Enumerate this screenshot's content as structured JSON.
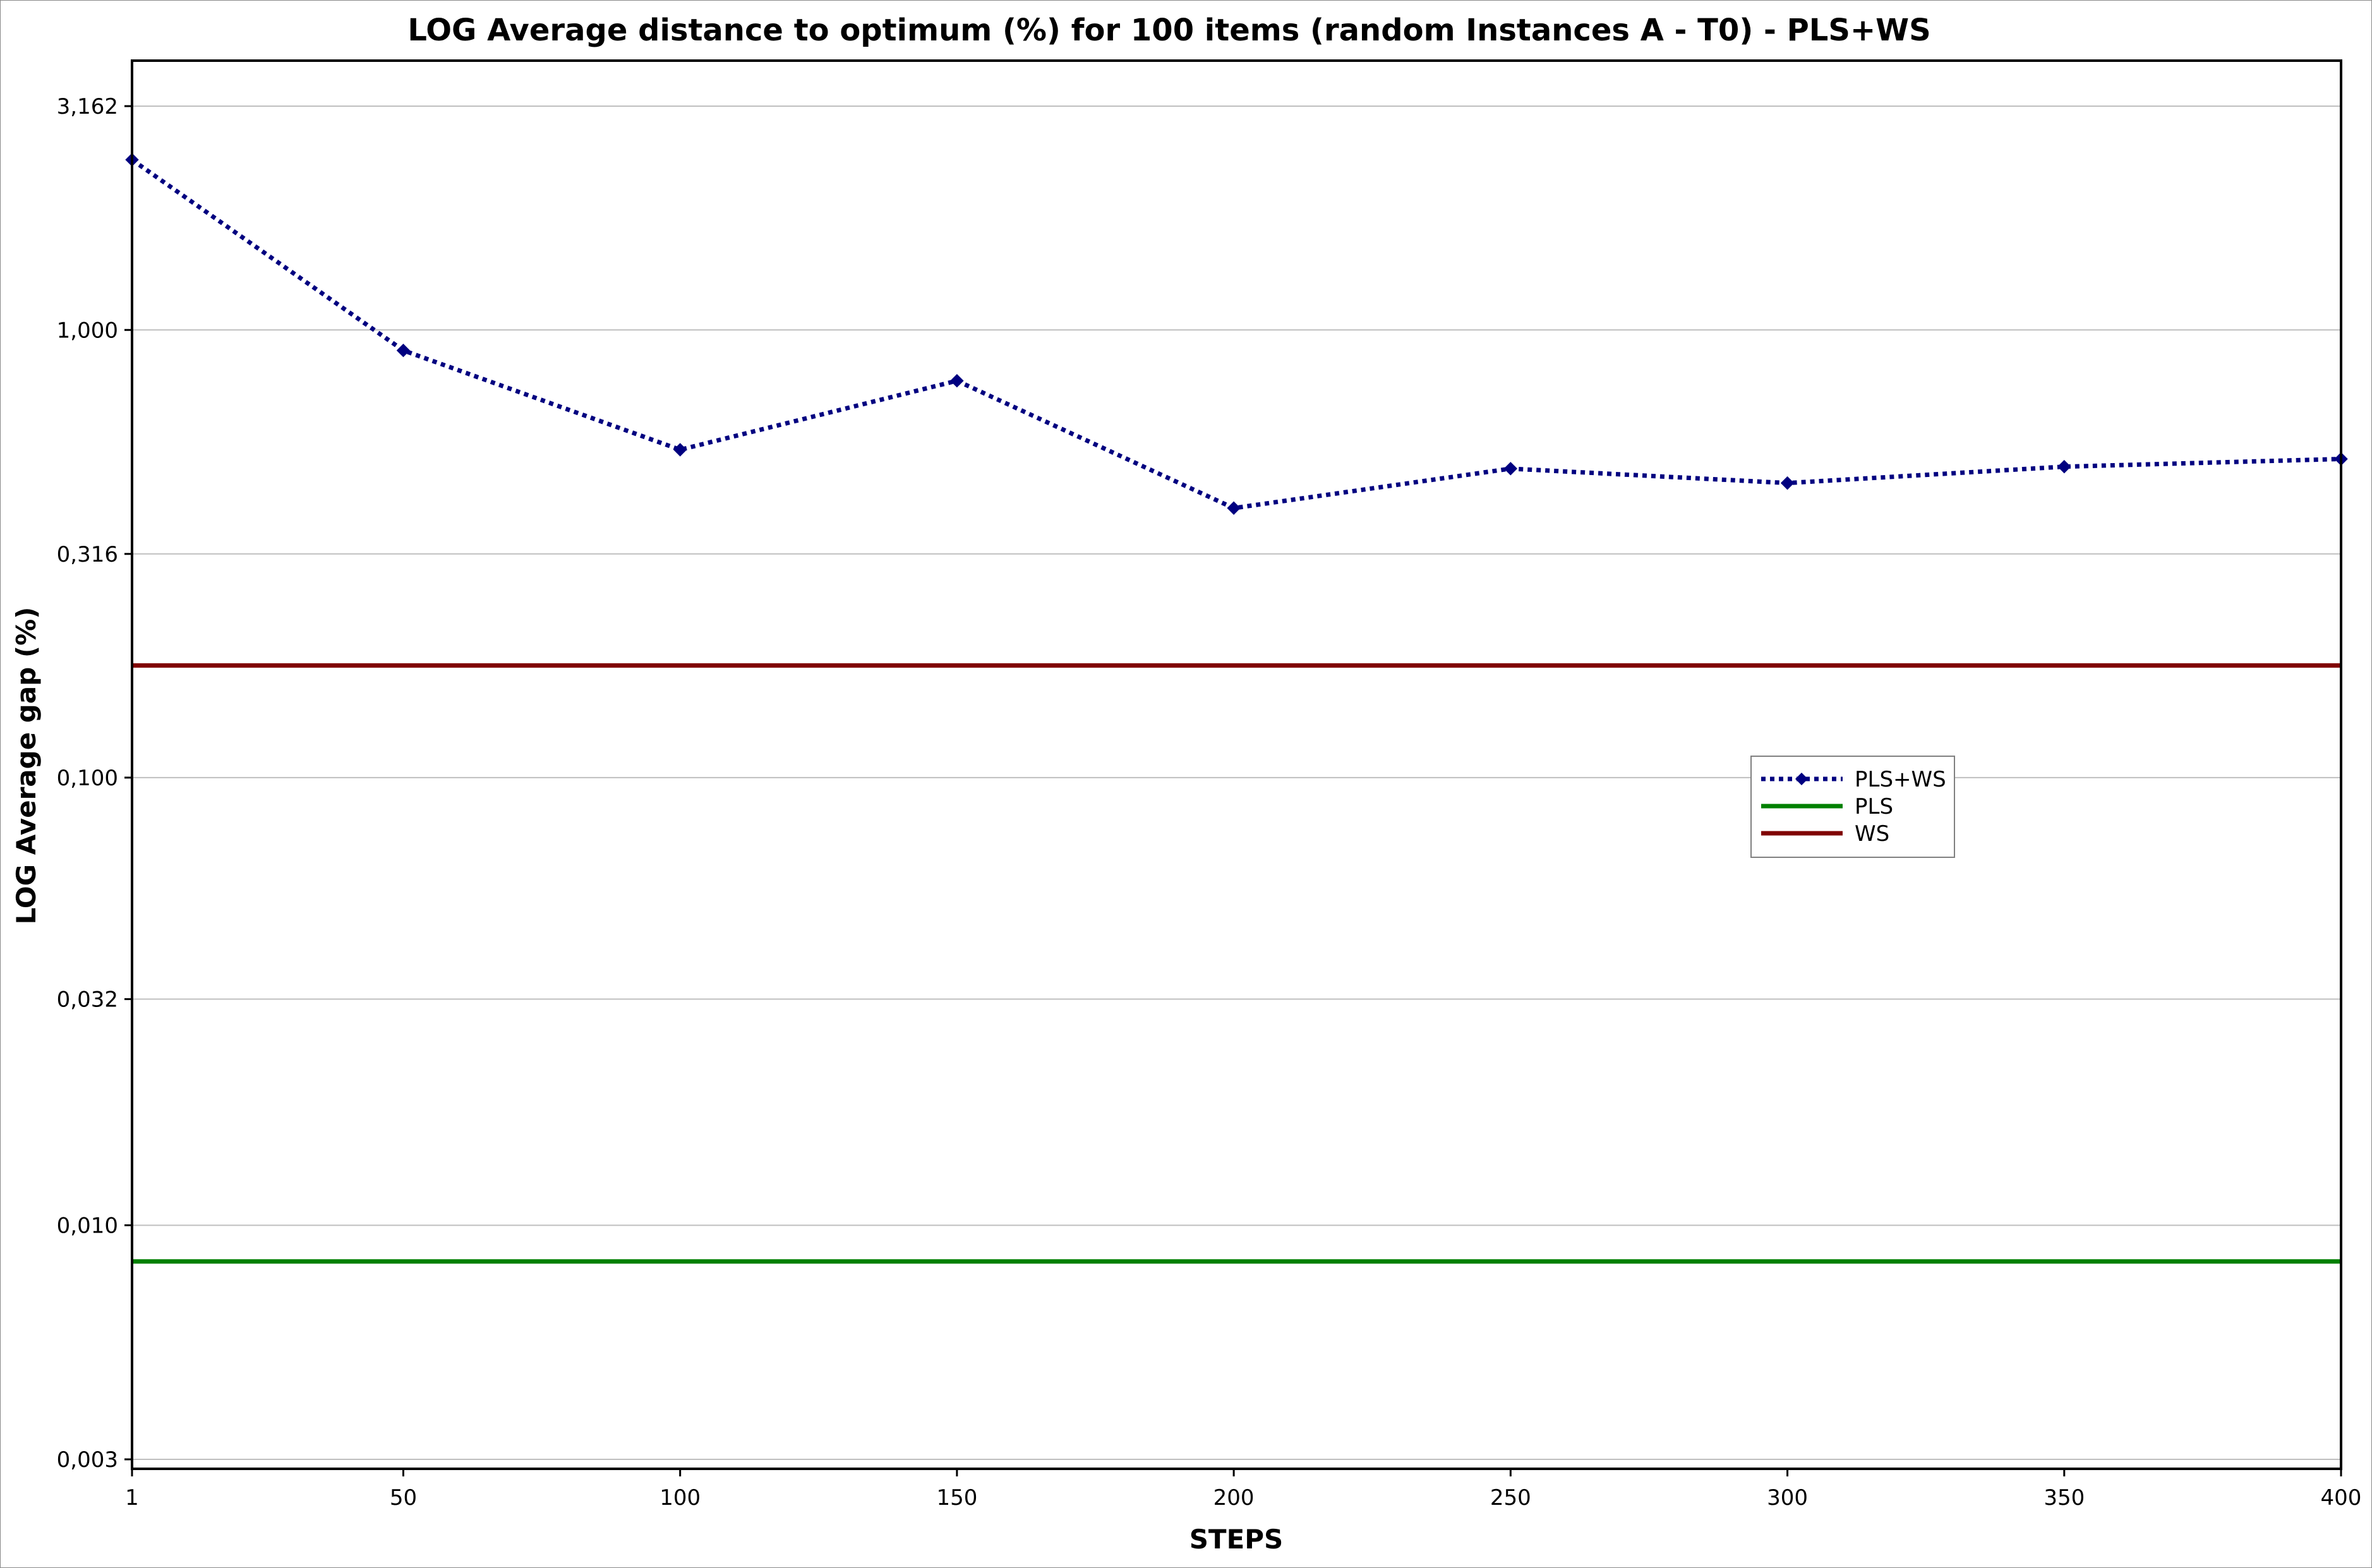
{
  "chart_data": {
    "type": "line",
    "title": "LOG Average distance to optimum (%) for 100 items (random Instances A - T0) - PLS+WS",
    "xlabel": "STEPS",
    "ylabel": "LOG Average gap (%)",
    "yscale": "log",
    "ylim": [
      0.003,
      3.8
    ],
    "xlim": [
      1,
      400
    ],
    "categories": [
      "1",
      "50",
      "100",
      "150",
      "200",
      "250",
      "300",
      "350",
      "400"
    ],
    "x": [
      1,
      50,
      100,
      150,
      200,
      250,
      300,
      350,
      400
    ],
    "y_ticks": [
      {
        "value": 3.162,
        "label": "3,162"
      },
      {
        "value": 1.0,
        "label": "1,000"
      },
      {
        "value": 0.316,
        "label": "0,316"
      },
      {
        "value": 0.1,
        "label": "0,100"
      },
      {
        "value": 0.032,
        "label": "0,032"
      },
      {
        "value": 0.01,
        "label": "0,010"
      },
      {
        "value": 0.003,
        "label": "0,003"
      }
    ],
    "grid": true,
    "legend_position": "right",
    "series": [
      {
        "name": "PLS+WS",
        "style": "dotted-with-diamond-markers",
        "color": "#000080",
        "values": [
          2.4,
          0.9,
          0.54,
          0.77,
          0.4,
          0.49,
          0.455,
          0.495,
          0.515
        ]
      },
      {
        "name": "PLS",
        "style": "solid",
        "color": "#008000",
        "values": [
          0.0083,
          0.0083,
          0.0083,
          0.0083,
          0.0083,
          0.0083,
          0.0083,
          0.0083,
          0.0083
        ]
      },
      {
        "name": "WS",
        "style": "solid",
        "color": "#800000",
        "values": [
          0.178,
          0.178,
          0.178,
          0.178,
          0.178,
          0.178,
          0.178,
          0.178,
          0.178
        ]
      }
    ]
  }
}
